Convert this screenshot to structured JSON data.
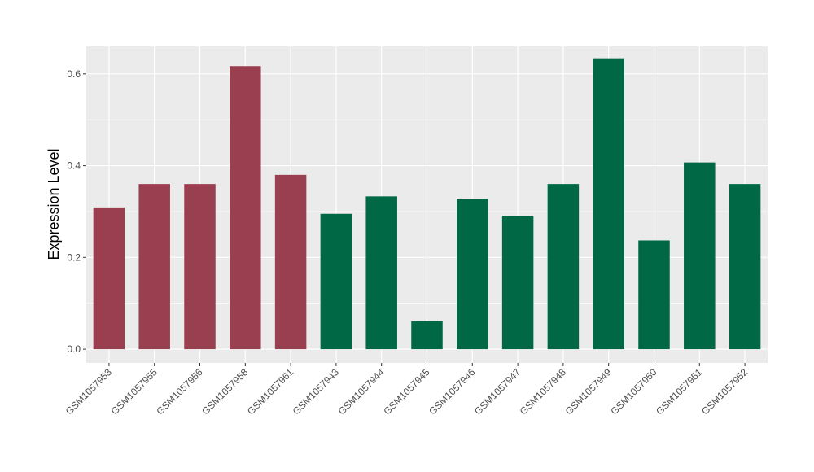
{
  "chart_data": {
    "type": "bar",
    "title": "",
    "xlabel": "",
    "ylabel": "Expression Level",
    "ylim": [
      -0.03,
      0.66
    ],
    "yticks": [
      0.0,
      0.2,
      0.4,
      0.6
    ],
    "ytick_labels": [
      "0.0",
      "0.2",
      "0.4",
      "0.6"
    ],
    "grid": true,
    "legend": "none",
    "categories": [
      "GSM1057953",
      "GSM1057955",
      "GSM1057956",
      "GSM1057958",
      "GSM1057961",
      "GSM1057943",
      "GSM1057944",
      "GSM1057945",
      "GSM1057946",
      "GSM1057947",
      "GSM1057948",
      "GSM1057949",
      "GSM1057950",
      "GSM1057951",
      "GSM1057952"
    ],
    "values": [
      0.309,
      0.36,
      0.36,
      0.617,
      0.38,
      0.295,
      0.333,
      0.061,
      0.328,
      0.291,
      0.36,
      0.634,
      0.237,
      0.407,
      0.36
    ],
    "colors": [
      "#9A3F4F",
      "#9A3F4F",
      "#9A3F4F",
      "#9A3F4F",
      "#9A3F4F",
      "#006845",
      "#006845",
      "#006845",
      "#006845",
      "#006845",
      "#006845",
      "#006845",
      "#006845",
      "#006845",
      "#006845"
    ],
    "panel_background": "#EBEBEB",
    "grid_color": "#FFFFFF"
  }
}
